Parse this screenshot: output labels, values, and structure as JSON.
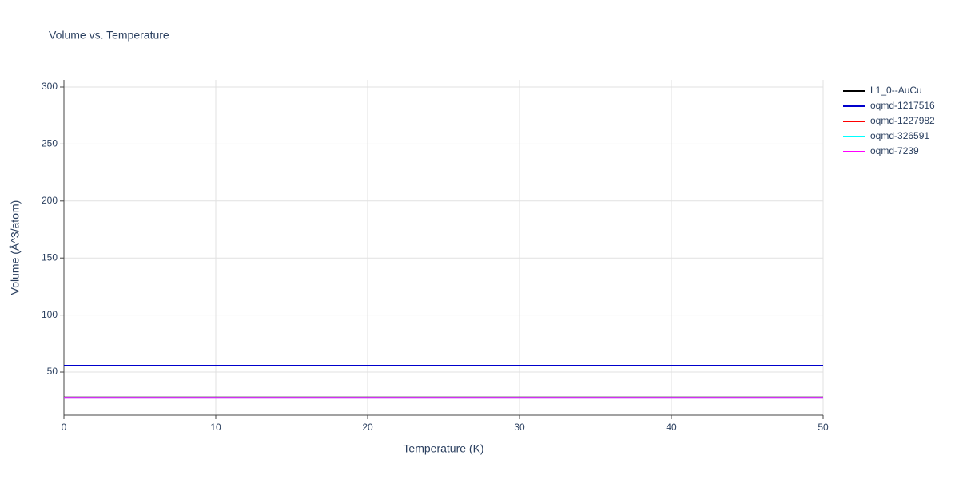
{
  "chart_data": {
    "type": "line",
    "title": "Volume vs. Temperature",
    "x_label": "Temperature (K)",
    "y_label": "Volume (Å^3/atom)",
    "x": [
      0,
      50
    ],
    "series": [
      {
        "name": "L1_0--AuCu",
        "color": "#000000",
        "values": [
          27.8,
          27.8
        ]
      },
      {
        "name": "oqmd-1217516",
        "color": "#0000cc",
        "values": [
          55.6,
          55.6
        ]
      },
      {
        "name": "oqmd-1227982",
        "color": "#ff0000",
        "values": [
          27.6,
          27.6
        ]
      },
      {
        "name": "oqmd-326591",
        "color": "#00ffff",
        "values": [
          27.5,
          27.5
        ]
      },
      {
        "name": "oqmd-7239",
        "color": "#ff00ff",
        "values": [
          27.4,
          27.4
        ]
      }
    ],
    "xlim": [
      0,
      50
    ],
    "xticks": [
      0,
      10,
      20,
      30,
      40,
      50
    ],
    "ylim": [
      12.2,
      306.3
    ],
    "yticks": [
      50,
      100,
      150,
      200,
      250,
      300
    ],
    "grid": true,
    "legend": "outside-right"
  }
}
